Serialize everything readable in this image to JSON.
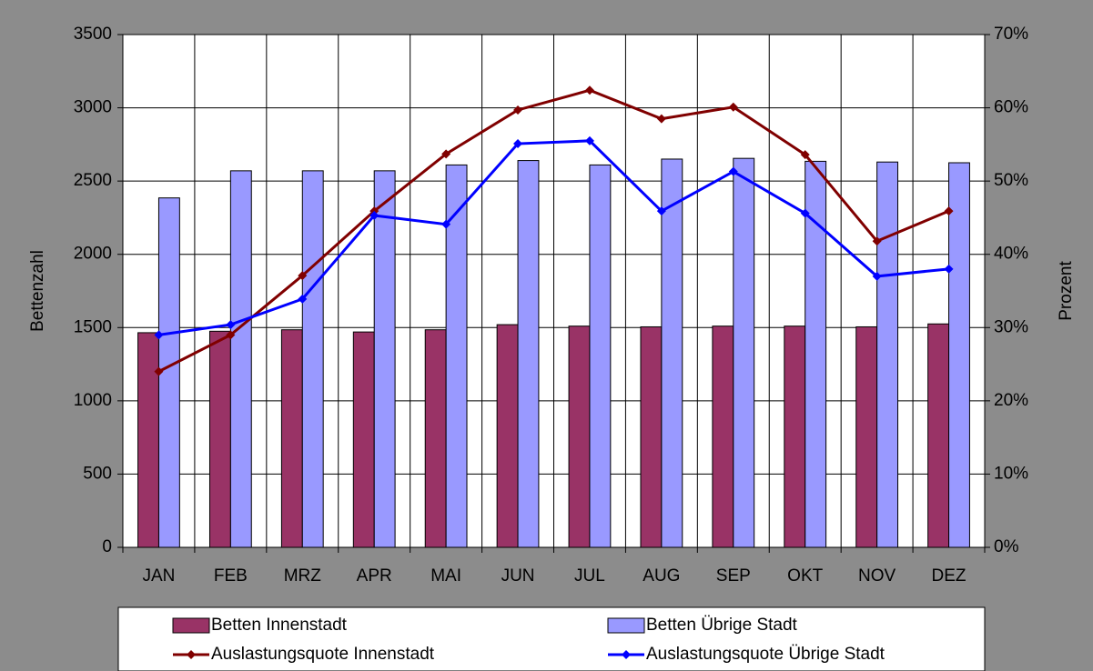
{
  "chart_data": {
    "type": "bar",
    "y_label": "Bettenzahl",
    "y2_label": "Prozent",
    "categories": [
      "JAN",
      "FEB",
      "MRZ",
      "APR",
      "MAI",
      "JUN",
      "JUL",
      "AUG",
      "SEP",
      "OKT",
      "NOV",
      "DEZ"
    ],
    "series": [
      {
        "name": "Betten Innenstadt",
        "type": "bar",
        "color": "#993366",
        "values": [
          1465,
          1475,
          1485,
          1470,
          1485,
          1520,
          1510,
          1505,
          1510,
          1510,
          1505,
          1525
        ]
      },
      {
        "name": "Betten Übrige Stadt",
        "type": "bar",
        "color": "#9999ff",
        "values": [
          2385,
          2570,
          2570,
          2570,
          2610,
          2640,
          2610,
          2650,
          2655,
          2635,
          2630,
          2625
        ]
      },
      {
        "name": "Auslastungsquote Innenstadt",
        "type": "line",
        "axis": "y2",
        "color": "#800000",
        "values": [
          24,
          29,
          37.1,
          45.9,
          53.7,
          59.7,
          62.4,
          58.5,
          60.1,
          53.6,
          41.8,
          45.9
        ]
      },
      {
        "name": "Auslastungsquote Übrige Stadt",
        "type": "line",
        "axis": "y2",
        "color": "#0000ff",
        "values": [
          29,
          30.4,
          33.9,
          45.3,
          44.1,
          55.1,
          55.5,
          45.9,
          51.3,
          45.6,
          37,
          38
        ]
      }
    ],
    "ylim": [
      0,
      3500
    ],
    "yticks": [
      0,
      500,
      1000,
      1500,
      2000,
      2500,
      3000,
      3500
    ],
    "y2lim": [
      0,
      70
    ],
    "y2ticks": [
      {
        "value": 0,
        "label": "0%"
      },
      {
        "value": 10,
        "label": "10%"
      },
      {
        "value": 20,
        "label": "20%"
      },
      {
        "value": 30,
        "label": "30%"
      },
      {
        "value": 40,
        "label": "40%"
      },
      {
        "value": 50,
        "label": "50%"
      },
      {
        "value": 60,
        "label": "60%"
      },
      {
        "value": 70,
        "label": "70%"
      }
    ],
    "grid": true,
    "legend": "bottom"
  }
}
